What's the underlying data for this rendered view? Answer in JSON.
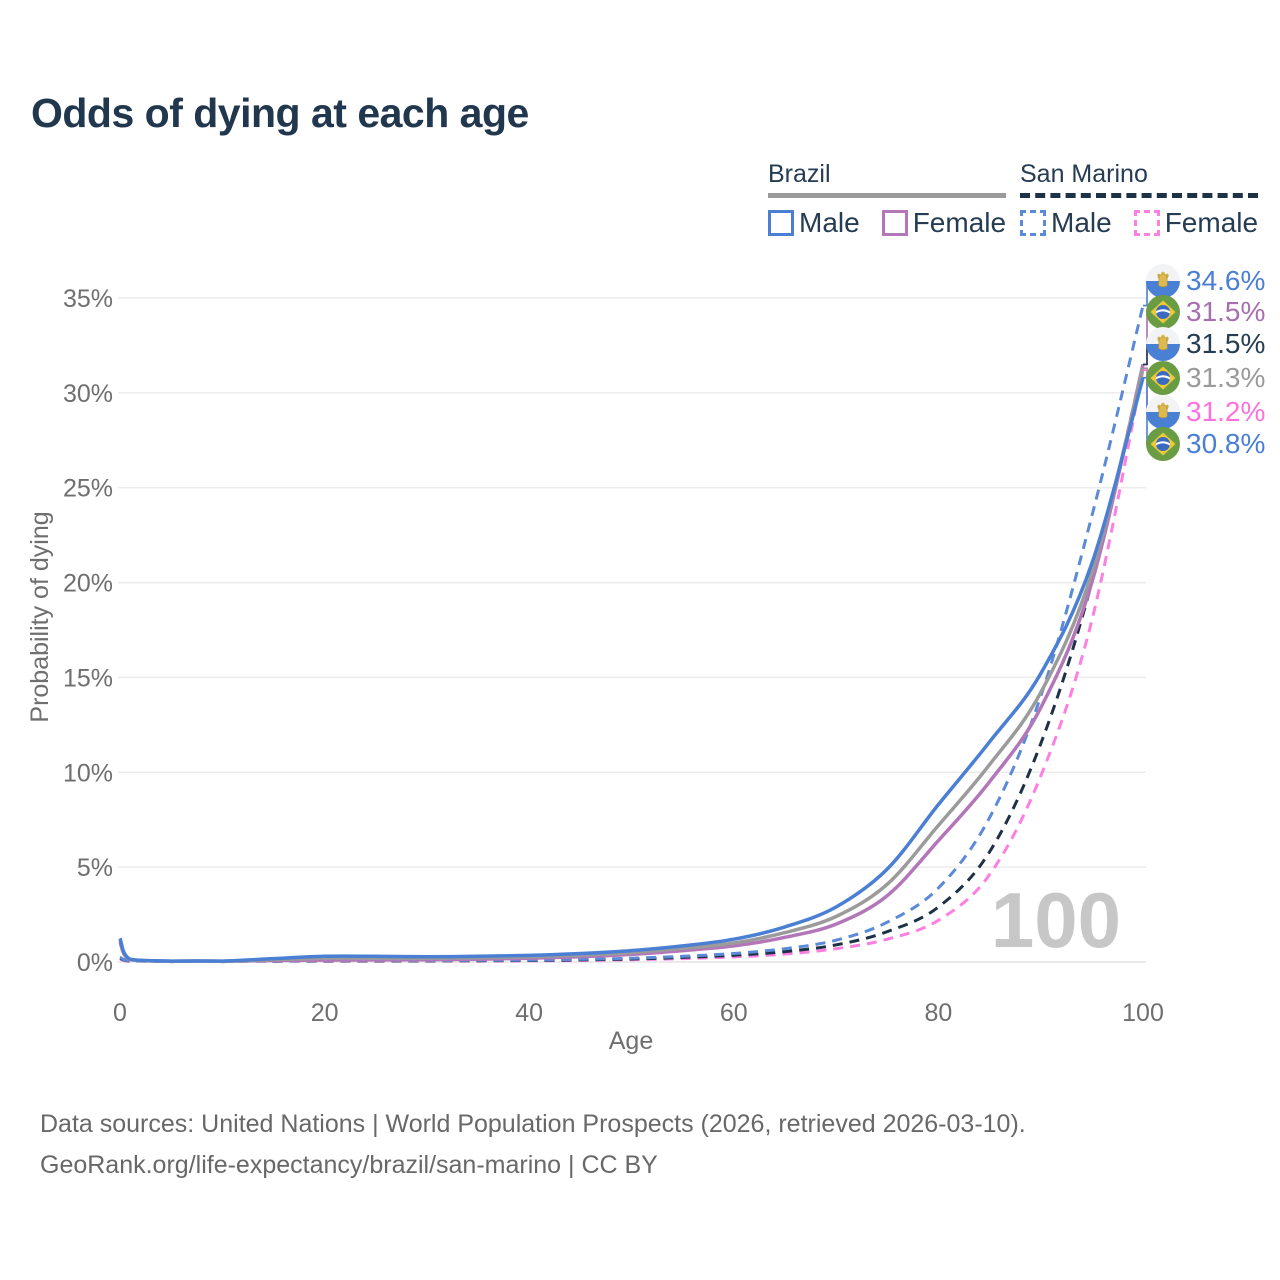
{
  "title": "Odds of dying at each age",
  "legend": {
    "groups": [
      {
        "country": "Brazil",
        "line_style": "solid",
        "underline_color": "#9a9a9a",
        "items": [
          {
            "label": "Male",
            "color": "#4a7fd4"
          },
          {
            "label": "Female",
            "color": "#b377b9"
          }
        ]
      },
      {
        "country": "San Marino",
        "line_style": "dashed",
        "underline_color": "#1d3246",
        "items": [
          {
            "label": "Male",
            "color": "#5b8ad8"
          },
          {
            "label": "Female",
            "color": "#fc7fe1"
          }
        ]
      }
    ]
  },
  "chart_data": {
    "type": "line",
    "title": "Odds of dying at each age",
    "xlabel": "Age",
    "ylabel": "Probability of dying",
    "xlim": [
      0,
      100
    ],
    "ylim": [
      0,
      35
    ],
    "xticks": [
      0,
      20,
      40,
      60,
      80,
      100
    ],
    "yticks": [
      0,
      5,
      10,
      15,
      20,
      25,
      30,
      35
    ],
    "y_unit": "%",
    "grid": "horizontal",
    "hover_age_watermark": "100",
    "ages": [
      0,
      1,
      5,
      10,
      15,
      20,
      25,
      30,
      35,
      40,
      45,
      50,
      55,
      60,
      65,
      70,
      75,
      80,
      85,
      90,
      95,
      100
    ],
    "series": [
      {
        "name": "Brazil Male",
        "country": "Brazil",
        "sex": "Male",
        "color": "#4a7fd4",
        "dash": false,
        "end_label": "30.8%",
        "values": [
          1.25,
          0.15,
          0.05,
          0.05,
          0.18,
          0.3,
          0.3,
          0.28,
          0.3,
          0.35,
          0.45,
          0.6,
          0.85,
          1.2,
          1.85,
          2.9,
          4.9,
          8.3,
          11.6,
          15.2,
          21.0,
          30.8
        ]
      },
      {
        "name": "Brazil All",
        "country": "Brazil",
        "sex": "All",
        "color": "#9b9b9b",
        "dash": false,
        "end_label": "31.3%",
        "values": [
          1.15,
          0.13,
          0.04,
          0.04,
          0.12,
          0.2,
          0.2,
          0.2,
          0.22,
          0.27,
          0.36,
          0.5,
          0.72,
          1.0,
          1.55,
          2.4,
          4.1,
          7.2,
          10.4,
          14.2,
          20.5,
          31.3
        ]
      },
      {
        "name": "Brazil Female",
        "country": "Brazil",
        "sex": "Female",
        "color": "#b377b9",
        "dash": false,
        "end_label": "31.5%",
        "values": [
          1.05,
          0.12,
          0.04,
          0.04,
          0.08,
          0.1,
          0.11,
          0.12,
          0.15,
          0.2,
          0.28,
          0.4,
          0.6,
          0.85,
          1.3,
          2.0,
          3.5,
          6.4,
          9.5,
          13.4,
          20.0,
          31.5
        ]
      },
      {
        "name": "San Marino Male",
        "country": "San Marino",
        "sex": "Male",
        "color": "#5b8ad8",
        "dash": true,
        "end_label": "34.6%",
        "values": [
          0.25,
          0.06,
          0.03,
          0.03,
          0.05,
          0.08,
          0.08,
          0.08,
          0.09,
          0.1,
          0.14,
          0.2,
          0.3,
          0.45,
          0.7,
          1.15,
          2.1,
          3.9,
          7.6,
          14.0,
          23.5,
          34.6
        ]
      },
      {
        "name": "San Marino All",
        "country": "San Marino",
        "sex": "All",
        "color": "#1d3246",
        "dash": true,
        "end_label": "31.5%",
        "values": [
          0.2,
          0.05,
          0.02,
          0.02,
          0.04,
          0.06,
          0.06,
          0.06,
          0.07,
          0.08,
          0.11,
          0.16,
          0.24,
          0.36,
          0.55,
          0.9,
          1.6,
          2.9,
          5.8,
          11.5,
          20.0,
          31.5
        ]
      },
      {
        "name": "San Marino Female",
        "country": "San Marino",
        "sex": "Female",
        "color": "#fc7fe1",
        "dash": true,
        "end_label": "31.2%",
        "values": [
          0.15,
          0.04,
          0.02,
          0.02,
          0.03,
          0.04,
          0.04,
          0.05,
          0.05,
          0.06,
          0.08,
          0.12,
          0.18,
          0.27,
          0.42,
          0.7,
          1.2,
          2.2,
          4.6,
          9.8,
          18.0,
          31.2
        ]
      }
    ]
  },
  "end_labels": [
    {
      "value": "34.6%",
      "country": "San Marino",
      "sex": "Male",
      "color": "#4a7fd4",
      "flag": "san-marino",
      "series_index": 3
    },
    {
      "value": "31.5%",
      "country": "Brazil",
      "sex": "Female",
      "color": "#a86fb0",
      "flag": "brazil",
      "series_index": 2
    },
    {
      "value": "31.5%",
      "country": "San Marino",
      "sex": "All",
      "color": "#263c52",
      "flag": "san-marino",
      "series_index": 4
    },
    {
      "value": "31.3%",
      "country": "Brazil",
      "sex": "All",
      "color": "#9a9a9a",
      "flag": "brazil",
      "series_index": 1
    },
    {
      "value": "31.2%",
      "country": "San Marino",
      "sex": "Female",
      "color": "#fb71dd",
      "flag": "san-marino",
      "series_index": 5
    },
    {
      "value": "30.8%",
      "country": "Brazil",
      "sex": "Male",
      "color": "#4a7fd4",
      "flag": "brazil",
      "series_index": 0
    }
  ],
  "source": {
    "line1": "Data sources: United Nations | World Population Prospects (2026, retrieved 2026-03-10).",
    "line2": "GeoRank.org/life-expectancy/brazil/san-marino | CC BY"
  },
  "colors": {
    "title_text": "#21374d",
    "axis_text": "#6f6f6f",
    "gridline": "#ececec",
    "baseline": "#e3e3e3",
    "watermark": "#c7c7c7",
    "source_text": "#686868"
  }
}
